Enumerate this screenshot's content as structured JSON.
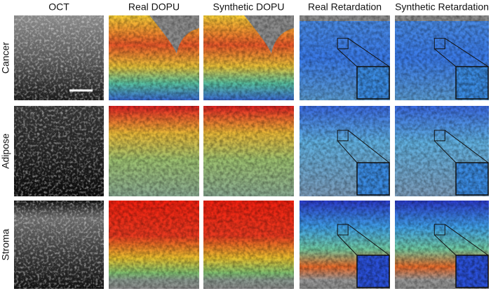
{
  "column_headers": [
    "OCT",
    "Real DOPU",
    "Synthetic DOPU",
    "Real Retardation",
    "Synthetic Retardation"
  ],
  "row_labels": [
    "Cancer",
    "Adipose",
    "Stroma"
  ]
}
